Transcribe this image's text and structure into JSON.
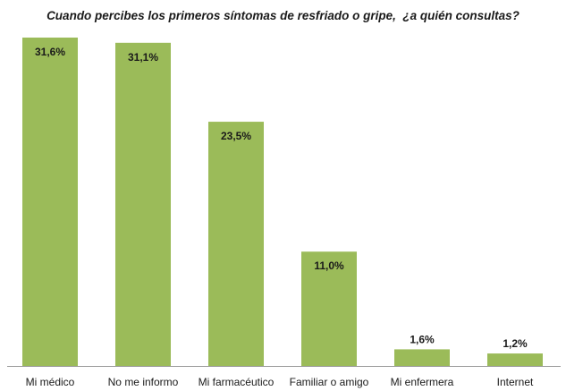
{
  "chart_data": {
    "type": "bar",
    "title": "Cuando percibes los primeros síntomas de resfriado o gripe,  ¿a quién consultas?",
    "categories": [
      "Mi médico",
      "No me informo",
      "Mi farmacéutico",
      "Familiar o amigo",
      "Mi enfermera",
      "Internet"
    ],
    "values": [
      31.6,
      31.1,
      23.5,
      11.0,
      1.6,
      1.2
    ],
    "data_labels": [
      "31,6%",
      "31,1%",
      "23,5%",
      "11,0%",
      "1,6%",
      "1,2%"
    ],
    "value_unit": "%",
    "ylim": [
      0,
      31.6
    ],
    "grid": false,
    "legend": "none",
    "bar_color": "#9bbb59"
  }
}
